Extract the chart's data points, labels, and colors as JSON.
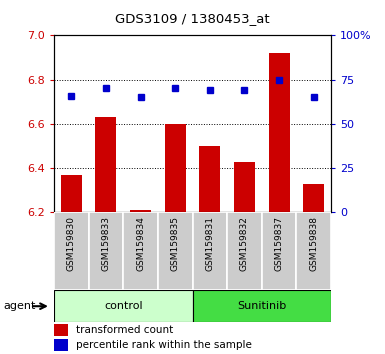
{
  "title": "GDS3109 / 1380453_at",
  "samples": [
    "GSM159830",
    "GSM159833",
    "GSM159834",
    "GSM159835",
    "GSM159831",
    "GSM159832",
    "GSM159837",
    "GSM159838"
  ],
  "transformed_count": [
    6.37,
    6.63,
    6.21,
    6.6,
    6.5,
    6.43,
    6.92,
    6.33
  ],
  "percentile_rank": [
    66,
    70,
    65,
    70,
    69,
    69,
    75,
    65
  ],
  "bar_bottom": 6.2,
  "ylim_left": [
    6.2,
    7.0
  ],
  "ylim_right": [
    0,
    100
  ],
  "yticks_left": [
    6.2,
    6.4,
    6.6,
    6.8,
    7.0
  ],
  "yticks_right": [
    0,
    25,
    50,
    75,
    100
  ],
  "ytick_labels_right": [
    "0",
    "25",
    "50",
    "75",
    "100%"
  ],
  "bar_color": "#cc0000",
  "dot_color": "#0000cc",
  "groups": [
    {
      "label": "control",
      "indices": [
        0,
        1,
        2,
        3
      ],
      "color": "#ccffcc"
    },
    {
      "label": "Sunitinib",
      "indices": [
        4,
        5,
        6,
        7
      ],
      "color": "#44dd44"
    }
  ],
  "agent_label": "agent",
  "legend_bar_label": "transformed count",
  "legend_dot_label": "percentile rank within the sample",
  "plot_bg": "#ffffff",
  "tick_label_color_left": "#cc0000",
  "tick_label_color_right": "#0000cc",
  "bar_width": 0.6,
  "sample_bg": "#cccccc",
  "fig_bg": "#ffffff"
}
